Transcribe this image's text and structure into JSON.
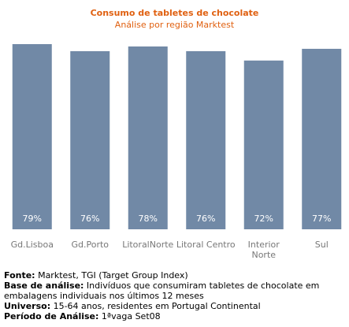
{
  "chart_data": {
    "type": "bar",
    "title": "Consumo de tabletes de chocolate",
    "subtitle": "Análise por região Marktest",
    "categories": [
      "Gd.Lisboa",
      "Gd.Porto",
      "LitoralNorte",
      "Litoral Centro",
      "Interior Norte",
      "Sul"
    ],
    "category_lines": [
      [
        "Gd.Lisboa"
      ],
      [
        "Gd.Porto"
      ],
      [
        "LitoralNorte"
      ],
      [
        "Litoral Centro"
      ],
      [
        "Interior",
        "Norte"
      ],
      [
        "Sul"
      ]
    ],
    "values": [
      79,
      76,
      78,
      76,
      72,
      77
    ],
    "value_labels": [
      "79%",
      "76%",
      "78%",
      "76%",
      "72%",
      "77%"
    ],
    "unit": "%",
    "ylim": [
      0,
      79
    ],
    "bar_color": "#7189A6",
    "grid": false,
    "legend": "none"
  },
  "footer": {
    "fonte_label": "Fonte:",
    "fonte_text": " Marktest, TGI (Target Group Index)",
    "base_label": "Base de análise:",
    "base_text": " Indivíduos que consumiram  tabletes de chocolate em embalagens individuais nos últimos 12 meses",
    "universo_label": "Universo:",
    "universo_text": " 15-64 anos, residentes em Portugal Continental",
    "periodo_label": "Período de Análise:",
    "periodo_text": " 1ªvaga Set08"
  }
}
